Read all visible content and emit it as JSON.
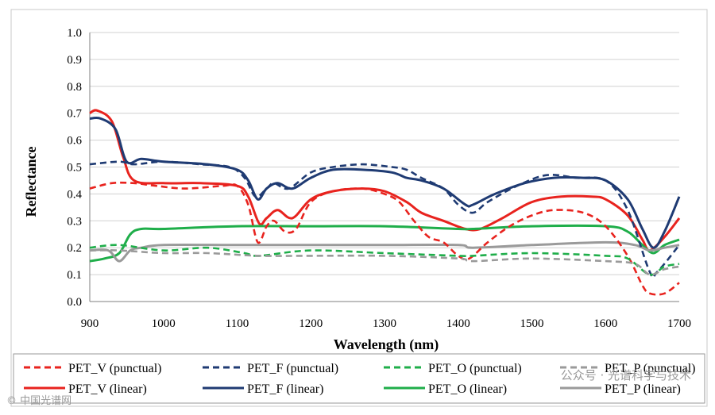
{
  "chart_data": {
    "type": "line",
    "title": "",
    "xlabel": "Wavelength (nm)",
    "ylabel": "Reflectance",
    "xlim": [
      900,
      1700
    ],
    "ylim": [
      0.0,
      1.0
    ],
    "x_ticks": [
      "900",
      "1000",
      "1100",
      "1200",
      "1300",
      "1400",
      "1500",
      "1600",
      "1700"
    ],
    "y_ticks": [
      "0.0",
      "0.1",
      "0.2",
      "0.3",
      "0.4",
      "0.5",
      "0.6",
      "0.7",
      "0.8",
      "0.9",
      "1.0"
    ],
    "grid": true,
    "legend_position": "bottom",
    "series": [
      {
        "name": "PET_V (punctual)",
        "color": "#e8231e",
        "dash": "dashed",
        "points": [
          [
            900,
            0.42
          ],
          [
            930,
            0.44
          ],
          [
            960,
            0.44
          ],
          [
            990,
            0.43
          ],
          [
            1030,
            0.42
          ],
          [
            1080,
            0.43
          ],
          [
            1100,
            0.43
          ],
          [
            1115,
            0.36
          ],
          [
            1128,
            0.22
          ],
          [
            1140,
            0.28
          ],
          [
            1150,
            0.3
          ],
          [
            1165,
            0.26
          ],
          [
            1180,
            0.27
          ],
          [
            1200,
            0.37
          ],
          [
            1230,
            0.41
          ],
          [
            1270,
            0.42
          ],
          [
            1300,
            0.4
          ],
          [
            1320,
            0.37
          ],
          [
            1340,
            0.3
          ],
          [
            1360,
            0.24
          ],
          [
            1380,
            0.22
          ],
          [
            1400,
            0.17
          ],
          [
            1415,
            0.16
          ],
          [
            1440,
            0.22
          ],
          [
            1470,
            0.28
          ],
          [
            1500,
            0.32
          ],
          [
            1530,
            0.34
          ],
          [
            1570,
            0.33
          ],
          [
            1600,
            0.28
          ],
          [
            1630,
            0.17
          ],
          [
            1650,
            0.06
          ],
          [
            1660,
            0.03
          ],
          [
            1680,
            0.03
          ],
          [
            1700,
            0.07
          ]
        ]
      },
      {
        "name": "PET_F (punctual)",
        "color": "#1f3b73",
        "dash": "dashed",
        "points": [
          [
            900,
            0.51
          ],
          [
            940,
            0.52
          ],
          [
            960,
            0.51
          ],
          [
            1000,
            0.52
          ],
          [
            1050,
            0.51
          ],
          [
            1090,
            0.5
          ],
          [
            1110,
            0.46
          ],
          [
            1125,
            0.39
          ],
          [
            1140,
            0.42
          ],
          [
            1150,
            0.44
          ],
          [
            1170,
            0.42
          ],
          [
            1200,
            0.48
          ],
          [
            1230,
            0.5
          ],
          [
            1270,
            0.51
          ],
          [
            1310,
            0.5
          ],
          [
            1330,
            0.49
          ],
          [
            1350,
            0.46
          ],
          [
            1380,
            0.42
          ],
          [
            1400,
            0.36
          ],
          [
            1420,
            0.33
          ],
          [
            1440,
            0.37
          ],
          [
            1480,
            0.43
          ],
          [
            1520,
            0.47
          ],
          [
            1560,
            0.46
          ],
          [
            1600,
            0.45
          ],
          [
            1630,
            0.34
          ],
          [
            1660,
            0.11
          ],
          [
            1670,
            0.11
          ],
          [
            1700,
            0.21
          ]
        ]
      },
      {
        "name": "PET_O (punctual)",
        "color": "#1fae4a",
        "dash": "dashed",
        "points": [
          [
            900,
            0.2
          ],
          [
            940,
            0.21
          ],
          [
            1000,
            0.19
          ],
          [
            1060,
            0.2
          ],
          [
            1110,
            0.18
          ],
          [
            1130,
            0.17
          ],
          [
            1200,
            0.19
          ],
          [
            1300,
            0.18
          ],
          [
            1400,
            0.17
          ],
          [
            1420,
            0.17
          ],
          [
            1500,
            0.18
          ],
          [
            1600,
            0.17
          ],
          [
            1630,
            0.16
          ],
          [
            1660,
            0.1
          ],
          [
            1680,
            0.13
          ],
          [
            1700,
            0.14
          ]
        ]
      },
      {
        "name": "PET_P (punctual)",
        "color": "#9a9a9a",
        "dash": "dashed",
        "points": [
          [
            900,
            0.19
          ],
          [
            940,
            0.19
          ],
          [
            1000,
            0.18
          ],
          [
            1060,
            0.18
          ],
          [
            1130,
            0.17
          ],
          [
            1200,
            0.17
          ],
          [
            1300,
            0.17
          ],
          [
            1400,
            0.16
          ],
          [
            1420,
            0.15
          ],
          [
            1500,
            0.16
          ],
          [
            1600,
            0.15
          ],
          [
            1640,
            0.14
          ],
          [
            1660,
            0.1
          ],
          [
            1680,
            0.12
          ],
          [
            1700,
            0.13
          ]
        ]
      },
      {
        "name": "PET_V (linear)",
        "color": "#e8231e",
        "dash": "solid",
        "points": [
          [
            900,
            0.7
          ],
          [
            910,
            0.71
          ],
          [
            930,
            0.67
          ],
          [
            945,
            0.54
          ],
          [
            960,
            0.45
          ],
          [
            1000,
            0.44
          ],
          [
            1050,
            0.44
          ],
          [
            1100,
            0.43
          ],
          [
            1115,
            0.39
          ],
          [
            1130,
            0.29
          ],
          [
            1140,
            0.31
          ],
          [
            1155,
            0.34
          ],
          [
            1175,
            0.31
          ],
          [
            1200,
            0.38
          ],
          [
            1230,
            0.41
          ],
          [
            1270,
            0.42
          ],
          [
            1300,
            0.41
          ],
          [
            1330,
            0.37
          ],
          [
            1350,
            0.33
          ],
          [
            1380,
            0.3
          ],
          [
            1410,
            0.27
          ],
          [
            1430,
            0.27
          ],
          [
            1460,
            0.31
          ],
          [
            1500,
            0.37
          ],
          [
            1540,
            0.39
          ],
          [
            1580,
            0.39
          ],
          [
            1600,
            0.38
          ],
          [
            1630,
            0.32
          ],
          [
            1650,
            0.23
          ],
          [
            1660,
            0.19
          ],
          [
            1680,
            0.24
          ],
          [
            1700,
            0.31
          ]
        ]
      },
      {
        "name": "PET_F (linear)",
        "color": "#1f3b73",
        "dash": "solid",
        "points": [
          [
            900,
            0.68
          ],
          [
            915,
            0.68
          ],
          [
            935,
            0.64
          ],
          [
            950,
            0.52
          ],
          [
            970,
            0.53
          ],
          [
            1000,
            0.52
          ],
          [
            1060,
            0.51
          ],
          [
            1100,
            0.49
          ],
          [
            1115,
            0.45
          ],
          [
            1128,
            0.38
          ],
          [
            1140,
            0.42
          ],
          [
            1155,
            0.44
          ],
          [
            1175,
            0.42
          ],
          [
            1200,
            0.46
          ],
          [
            1230,
            0.49
          ],
          [
            1270,
            0.49
          ],
          [
            1310,
            0.48
          ],
          [
            1330,
            0.46
          ],
          [
            1350,
            0.45
          ],
          [
            1380,
            0.42
          ],
          [
            1410,
            0.36
          ],
          [
            1420,
            0.36
          ],
          [
            1450,
            0.4
          ],
          [
            1490,
            0.44
          ],
          [
            1530,
            0.46
          ],
          [
            1570,
            0.46
          ],
          [
            1600,
            0.45
          ],
          [
            1630,
            0.38
          ],
          [
            1650,
            0.27
          ],
          [
            1665,
            0.2
          ],
          [
            1680,
            0.26
          ],
          [
            1700,
            0.39
          ]
        ]
      },
      {
        "name": "PET_O (linear)",
        "color": "#1fae4a",
        "dash": "solid",
        "points": [
          [
            900,
            0.15
          ],
          [
            920,
            0.16
          ],
          [
            940,
            0.18
          ],
          [
            955,
            0.25
          ],
          [
            970,
            0.27
          ],
          [
            1000,
            0.27
          ],
          [
            1100,
            0.28
          ],
          [
            1200,
            0.28
          ],
          [
            1300,
            0.28
          ],
          [
            1400,
            0.27
          ],
          [
            1420,
            0.27
          ],
          [
            1500,
            0.28
          ],
          [
            1600,
            0.28
          ],
          [
            1630,
            0.26
          ],
          [
            1650,
            0.21
          ],
          [
            1665,
            0.18
          ],
          [
            1680,
            0.21
          ],
          [
            1700,
            0.23
          ]
        ]
      },
      {
        "name": "PET_P (linear)",
        "color": "#9a9a9a",
        "dash": "solid",
        "points": [
          [
            900,
            0.19
          ],
          [
            925,
            0.19
          ],
          [
            940,
            0.15
          ],
          [
            955,
            0.19
          ],
          [
            970,
            0.2
          ],
          [
            1000,
            0.21
          ],
          [
            1100,
            0.21
          ],
          [
            1200,
            0.21
          ],
          [
            1300,
            0.21
          ],
          [
            1400,
            0.21
          ],
          [
            1420,
            0.2
          ],
          [
            1500,
            0.21
          ],
          [
            1600,
            0.22
          ],
          [
            1640,
            0.21
          ],
          [
            1660,
            0.19
          ],
          [
            1680,
            0.2
          ],
          [
            1700,
            0.21
          ]
        ]
      }
    ]
  },
  "watermark": "公众号 · 光谱科学与技术",
  "source_mark": "© 中国光谱网"
}
